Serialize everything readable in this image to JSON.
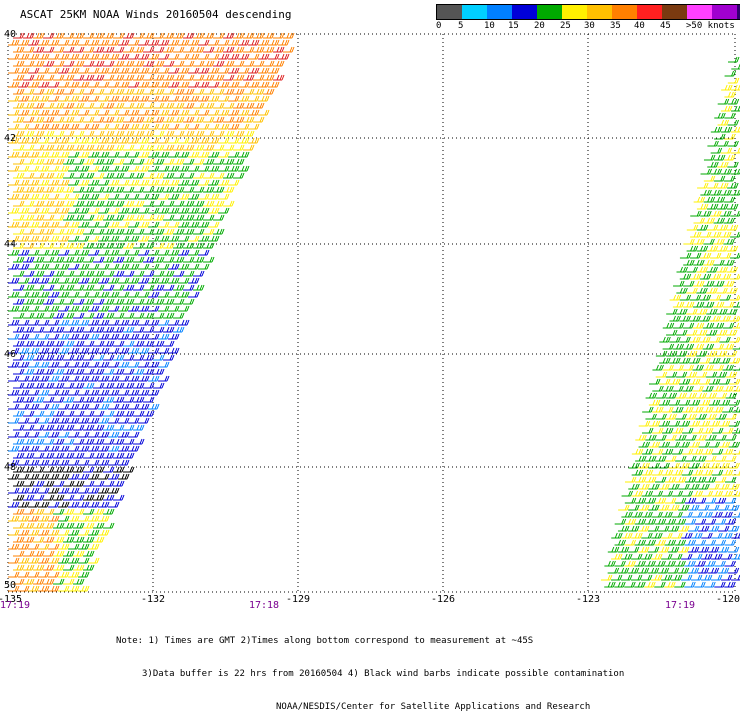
{
  "title": "ASCAT 25KM NOAA Winds 20160504 descending",
  "legend": {
    "colors": [
      "#555555",
      "#00cfff",
      "#0080ff",
      "#0000d8",
      "#00aa00",
      "#fff000",
      "#ffc000",
      "#ff8000",
      "#ff2020",
      "#7a3a10",
      "#ff40ff",
      "#a000d0",
      "#300070"
    ],
    "labels": [
      "0",
      "5",
      "10",
      "15",
      "20",
      "25",
      "30",
      "35",
      "40",
      "45",
      ">50 knots"
    ]
  },
  "map": {
    "lon_labels": [
      "-135",
      "-132",
      "-129",
      "-126",
      "-123",
      "-120"
    ],
    "lat_labels": [
      "40",
      "42",
      "44",
      "46",
      "48",
      "50"
    ],
    "time_labels": [
      "17:19",
      "17:18",
      "17:19"
    ]
  },
  "note": {
    "line1": "Note: 1) Times are GMT 2)Times along bottom correspond to measurement at ~45S",
    "line2": "3)Data buffer is 22 hrs from 20160504 4) Black wind barbs indicate possible contamination",
    "line3": "NOAA/NESDIS/Center for Satellite Applications and Research"
  }
}
